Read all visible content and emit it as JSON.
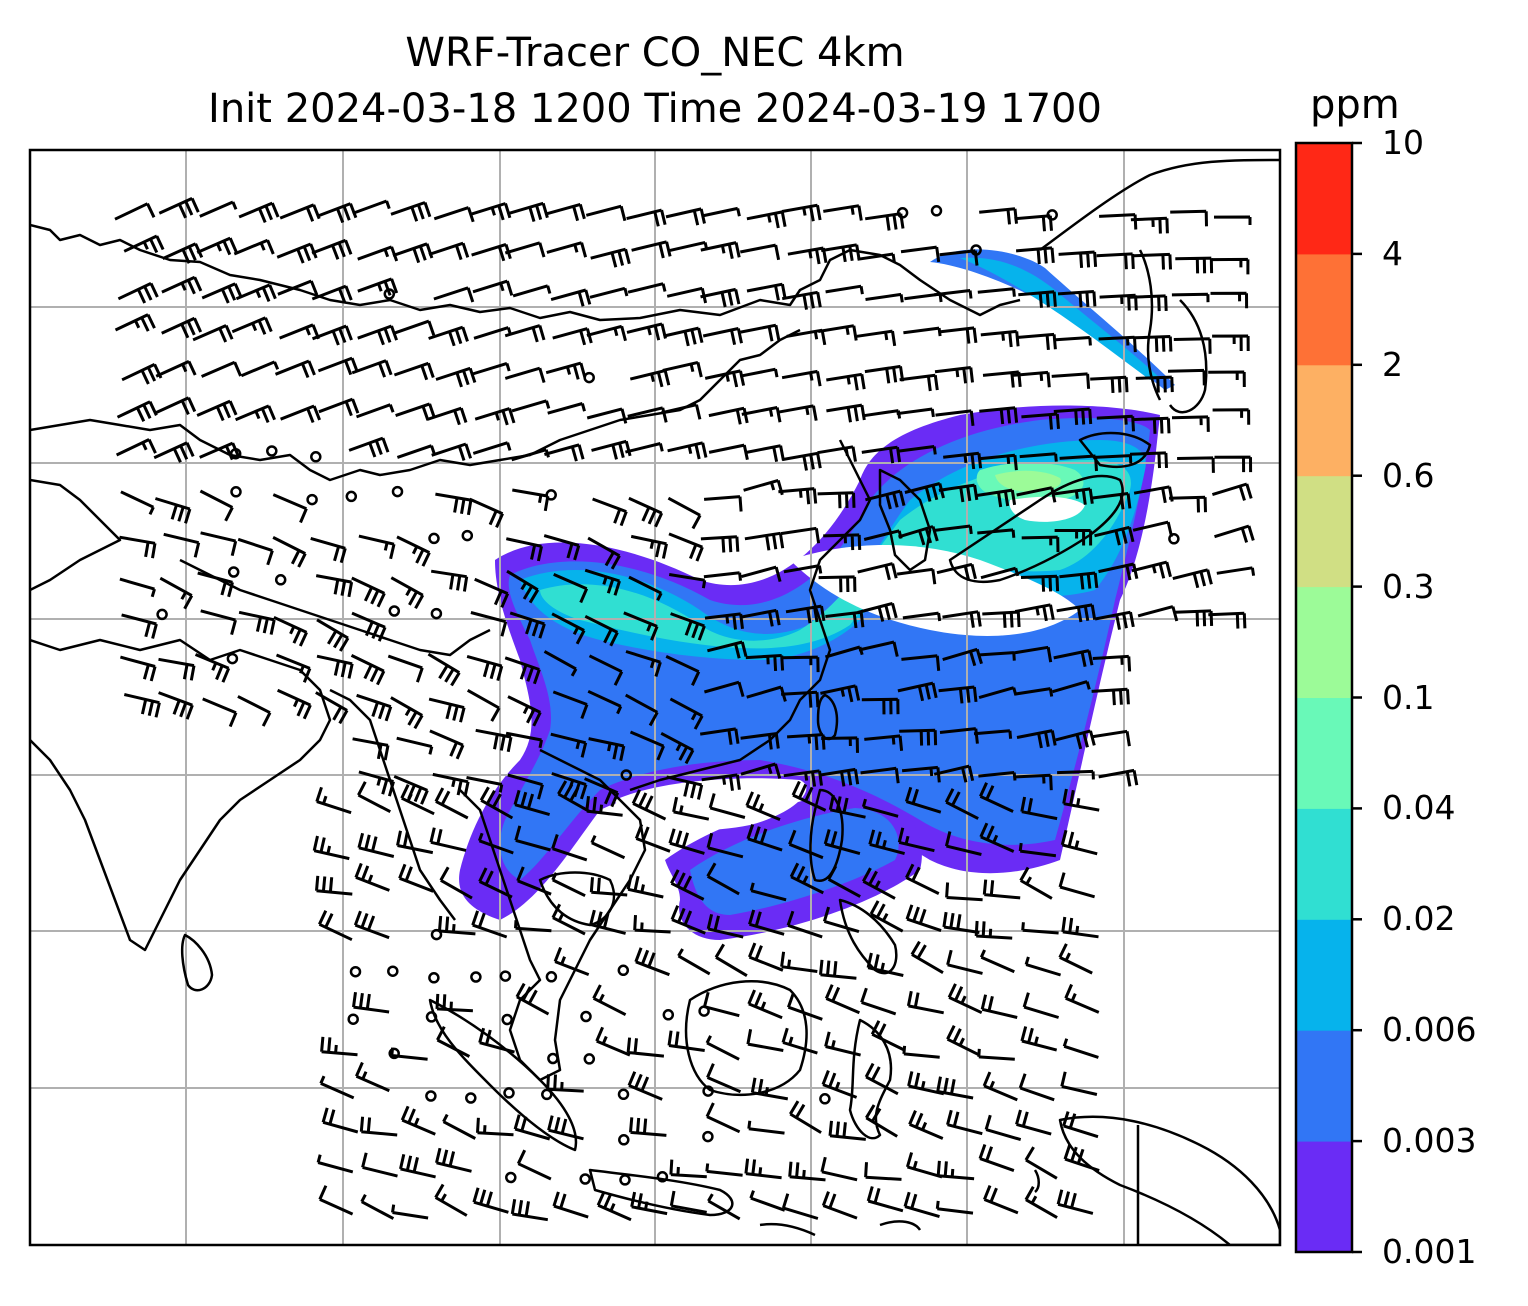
{
  "title": {
    "line1": "WRF-Tracer CO_NEC 4km",
    "line2": "Init 2024-03-18 1200 Time 2024-03-19 1700"
  },
  "colorbar": {
    "unit": "ppm",
    "levels": [
      "0.001",
      "0.003",
      "0.006",
      "0.02",
      "0.04",
      "0.1",
      "0.3",
      "0.6",
      "2",
      "4",
      "10"
    ],
    "colors": [
      "#6a2cf5",
      "#3176f5",
      "#06b3ec",
      "#30dfd2",
      "#69f9b8",
      "#9cfb98",
      "#d0df84",
      "#fdb063",
      "#fe7136",
      "#ff2816"
    ]
  },
  "map": {
    "gridlines": true,
    "coastlines": true,
    "wind_barbs": true,
    "land_color": "#ffffff",
    "line_color": "#000000",
    "grid_color": "#b0b0b0"
  }
}
